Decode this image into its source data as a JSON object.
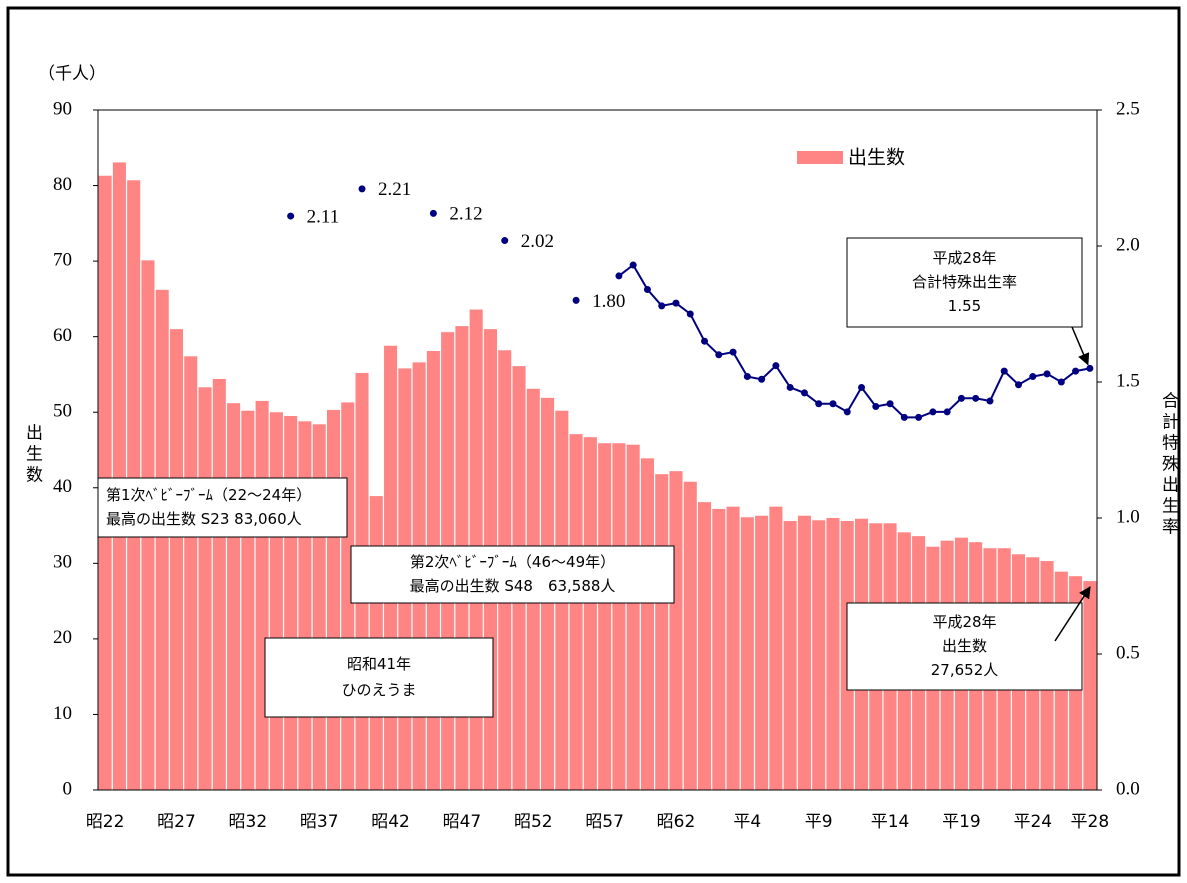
{
  "chart_data": {
    "type": "bar-line",
    "unit_label": "（千人）",
    "ylabel": "出生数",
    "y2label": "合計特殊出生率",
    "categories": [
      "昭22",
      null,
      null,
      null,
      null,
      "昭27",
      null,
      null,
      null,
      null,
      "昭32",
      null,
      null,
      null,
      null,
      "昭37",
      null,
      null,
      null,
      null,
      "昭42",
      null,
      null,
      null,
      null,
      "昭47",
      null,
      null,
      null,
      null,
      "昭52",
      null,
      null,
      null,
      null,
      "昭57",
      null,
      null,
      null,
      null,
      "昭62",
      null,
      null,
      null,
      null,
      "平4",
      null,
      null,
      null,
      null,
      "平9",
      null,
      null,
      null,
      null,
      "平14",
      null,
      null,
      null,
      null,
      "平19",
      null,
      null,
      null,
      null,
      "平24",
      null,
      null,
      null,
      "平28"
    ],
    "series": [
      {
        "name": "出生数",
        "type": "bar",
        "color": "#ff8585",
        "values": [
          81.3,
          83.06,
          80.7,
          70.1,
          66.2,
          61.0,
          57.4,
          53.3,
          54.4,
          51.2,
          50.2,
          51.5,
          50.0,
          49.5,
          48.8,
          48.4,
          50.3,
          51.3,
          55.2,
          38.9,
          58.8,
          55.8,
          56.6,
          58.1,
          60.6,
          61.4,
          63.588,
          61.0,
          58.2,
          56.1,
          53.1,
          51.9,
          50.2,
          47.1,
          46.7,
          45.9,
          45.9,
          45.7,
          43.9,
          41.8,
          42.2,
          40.8,
          38.1,
          37.2,
          37.5,
          36.1,
          36.3,
          37.5,
          35.6,
          36.3,
          35.7,
          36.0,
          35.6,
          35.9,
          35.3,
          35.3,
          34.1,
          33.6,
          32.2,
          33.0,
          33.4,
          32.8,
          32.0,
          32.0,
          31.2,
          30.8,
          30.3,
          28.9,
          28.3,
          27.652
        ]
      },
      {
        "type": "line",
        "axis": "y2",
        "color": "#000080",
        "values": [
          null,
          null,
          null,
          null,
          null,
          null,
          null,
          null,
          null,
          null,
          null,
          null,
          null,
          2.11,
          null,
          null,
          null,
          null,
          2.21,
          null,
          null,
          null,
          null,
          2.12,
          null,
          null,
          null,
          null,
          2.02,
          null,
          null,
          null,
          null,
          1.8,
          null,
          null,
          1.89,
          1.93,
          1.84,
          1.78,
          1.79,
          1.75,
          1.65,
          1.6,
          1.61,
          1.52,
          1.51,
          1.56,
          1.48,
          1.46,
          1.42,
          1.42,
          1.39,
          1.48,
          1.41,
          1.42,
          1.37,
          1.37,
          1.39,
          1.39,
          1.44,
          1.44,
          1.43,
          1.54,
          1.49,
          1.52,
          1.53,
          1.5,
          1.54,
          1.55
        ],
        "value_labels": [
          null,
          null,
          null,
          null,
          null,
          null,
          null,
          null,
          null,
          null,
          null,
          null,
          null,
          "2.11",
          null,
          null,
          null,
          null,
          "2.21",
          null,
          null,
          null,
          null,
          "2.12",
          null,
          null,
          null,
          null,
          "2.02",
          null,
          null,
          null,
          null,
          "1.80",
          null,
          null,
          null,
          null,
          null,
          null,
          null,
          null,
          null,
          null,
          null,
          null,
          null,
          null,
          null,
          null,
          null,
          null,
          null,
          null,
          null,
          null,
          null,
          null,
          null,
          null,
          null,
          null,
          null,
          null,
          null,
          null,
          null,
          null,
          null,
          null
        ]
      }
    ],
    "ylim": [
      0,
      90
    ],
    "yticks": [
      0,
      10,
      20,
      30,
      40,
      50,
      60,
      70,
      80,
      90
    ],
    "y2lim": [
      0,
      2.5
    ],
    "y2ticks": [
      {
        "value": 0,
        "label": "0.0"
      },
      {
        "value": 0.5,
        "label": "0.5"
      },
      {
        "value": 1,
        "label": "1.0"
      },
      {
        "value": 1.5,
        "label": "1.5"
      },
      {
        "value": 2,
        "label": "2.0"
      },
      {
        "value": 2.5,
        "label": "2.5"
      }
    ],
    "legend": "top-right",
    "annotations": [
      [
        "第1次ﾍﾞﾋﾞｰﾌﾞｰﾑ（22～24年）",
        "最高の出生数 S23 83,060人"
      ],
      [
        "第2次ﾍﾞﾋﾞｰﾌﾞｰﾑ（46～49年）",
        "最高の出生数 S48　63,588人"
      ],
      [
        "昭和41年",
        "ひのえうま"
      ],
      [
        "平成28年",
        "出生数",
        "27,652人"
      ],
      [
        "平成28年",
        "合計特殊出生率",
        "1.55"
      ]
    ]
  }
}
